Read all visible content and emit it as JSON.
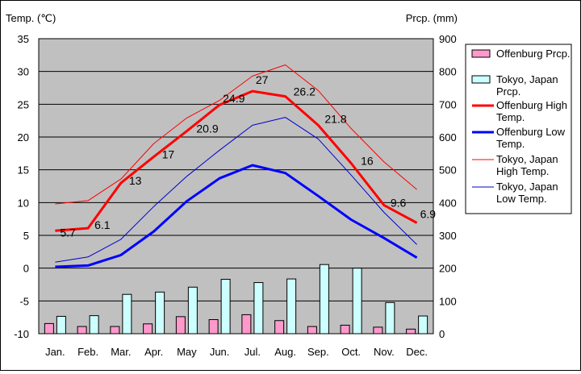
{
  "chart_data": {
    "type": "bar+line",
    "left_axis_label": "Temp. (℃)",
    "right_axis_label": "Prcp. (mm)",
    "categories": [
      "Jan.",
      "Feb.",
      "Mar.",
      "Apr.",
      "May",
      "Jun.",
      "Jul.",
      "Aug.",
      "Sep.",
      "Oct.",
      "Nov.",
      "Dec."
    ],
    "ylim_left": [
      -10,
      35
    ],
    "yticks_left": [
      "35",
      "30",
      "25",
      "20",
      "15",
      "10",
      "5",
      "0",
      "-5",
      "-10"
    ],
    "ylim_right": [
      0,
      900
    ],
    "yticks_right": [
      "900",
      "800",
      "700",
      "600",
      "500",
      "400",
      "300",
      "200",
      "100",
      "0"
    ],
    "grid": true,
    "legend_position": "right",
    "bar_series": [
      {
        "name": "Offenburg Prcp.",
        "color": "#ff99cc",
        "values": [
          31,
          22,
          22,
          30,
          52,
          43,
          58,
          40,
          22,
          26,
          20,
          14
        ]
      },
      {
        "name": "Tokyo, Japan Prcp.",
        "color": "#ccffff",
        "values": [
          53,
          55,
          120,
          127,
          142,
          166,
          156,
          167,
          211,
          200,
          95,
          54
        ]
      }
    ],
    "line_series": [
      {
        "name": "Offenburg High Temp.",
        "color": "#ff0000",
        "width": 3,
        "values": [
          5.7,
          6.1,
          13,
          17,
          20.9,
          24.9,
          27,
          26.2,
          21.8,
          16,
          9.6,
          6.9
        ],
        "labels": [
          "5.7",
          "6.1",
          "13",
          "17",
          "20.9",
          "24.9",
          "27",
          "26.2",
          "21.8",
          "16",
          "9.6",
          "6.9"
        ]
      },
      {
        "name": "Offenburg Low Temp.",
        "color": "#0000ff",
        "width": 3,
        "values": [
          0.2,
          0.4,
          2.0,
          5.6,
          10.2,
          13.7,
          15.7,
          14.5,
          11.0,
          7.4,
          4.6,
          1.6
        ]
      },
      {
        "name": "Tokyo, Japan High Temp.",
        "color": "#ff0000",
        "width": 1,
        "values": [
          9.8,
          10.3,
          13.6,
          19.0,
          22.9,
          25.6,
          29.3,
          31.0,
          27.1,
          21.3,
          16.2,
          12.0
        ]
      },
      {
        "name": "Tokyo, Japan Low Temp.",
        "color": "#0000cc",
        "width": 1,
        "values": [
          0.9,
          1.7,
          4.4,
          9.4,
          14.0,
          18.0,
          21.8,
          23.0,
          19.7,
          14.2,
          8.5,
          3.6
        ]
      }
    ]
  },
  "legend": [
    {
      "label": "Offenburg Prcp.",
      "kind": "bar",
      "color": "#ff99cc"
    },
    {
      "label": "Tokyo, Japan Prcp.",
      "kind": "bar",
      "color": "#ccffff"
    },
    {
      "label": "Offenburg High Temp.",
      "kind": "line",
      "color": "#ff0000",
      "width": 3
    },
    {
      "label": "Offenburg Low Temp.",
      "kind": "line",
      "color": "#0000ff",
      "width": 3
    },
    {
      "label": "Tokyo, Japan High Temp.",
      "kind": "line",
      "color": "#ff0000",
      "width": 1
    },
    {
      "label": "Tokyo, Japan Low Temp.",
      "kind": "line",
      "color": "#0000cc",
      "width": 1
    }
  ]
}
